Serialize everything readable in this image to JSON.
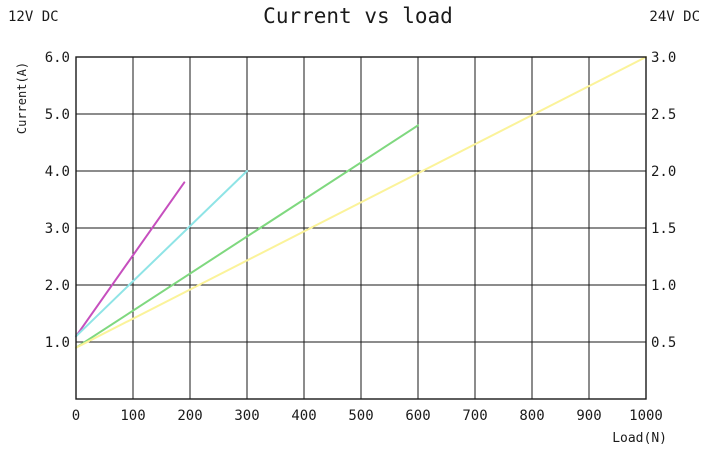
{
  "chart_data": {
    "type": "line",
    "title": "Current vs load",
    "left_axis_title": "12V DC",
    "right_axis_title": "24V DC",
    "ylabel": "Current(A)",
    "xlabel": "Load(N)",
    "xlim": [
      0,
      1000
    ],
    "ylim": [
      0,
      6
    ],
    "y2lim": [
      0,
      3
    ],
    "grid": true,
    "x_ticks": [
      "0",
      "100",
      "200",
      "300",
      "400",
      "500",
      "600",
      "700",
      "800",
      "900",
      "1000"
    ],
    "y_ticks": [
      "1.0",
      "2.0",
      "3.0",
      "4.0",
      "5.0",
      "6.0"
    ],
    "y_tick_values": [
      1,
      2,
      3,
      4,
      5,
      6
    ],
    "y2_ticks": [
      "0.5",
      "1.0",
      "1.5",
      "2.0",
      "2.5",
      "3.0"
    ],
    "series": [
      {
        "color": "#c64fbe",
        "x": [
          0,
          190
        ],
        "y": [
          1.1,
          3.8
        ]
      },
      {
        "color": "#8fe4e6",
        "x": [
          0,
          300
        ],
        "y": [
          1.1,
          4.0
        ]
      },
      {
        "color": "#7fd87f",
        "x": [
          0,
          600
        ],
        "y": [
          0.9,
          4.8
        ]
      },
      {
        "color": "#fbf39a",
        "x": [
          0,
          1000
        ],
        "y": [
          0.9,
          6.0
        ]
      }
    ]
  }
}
